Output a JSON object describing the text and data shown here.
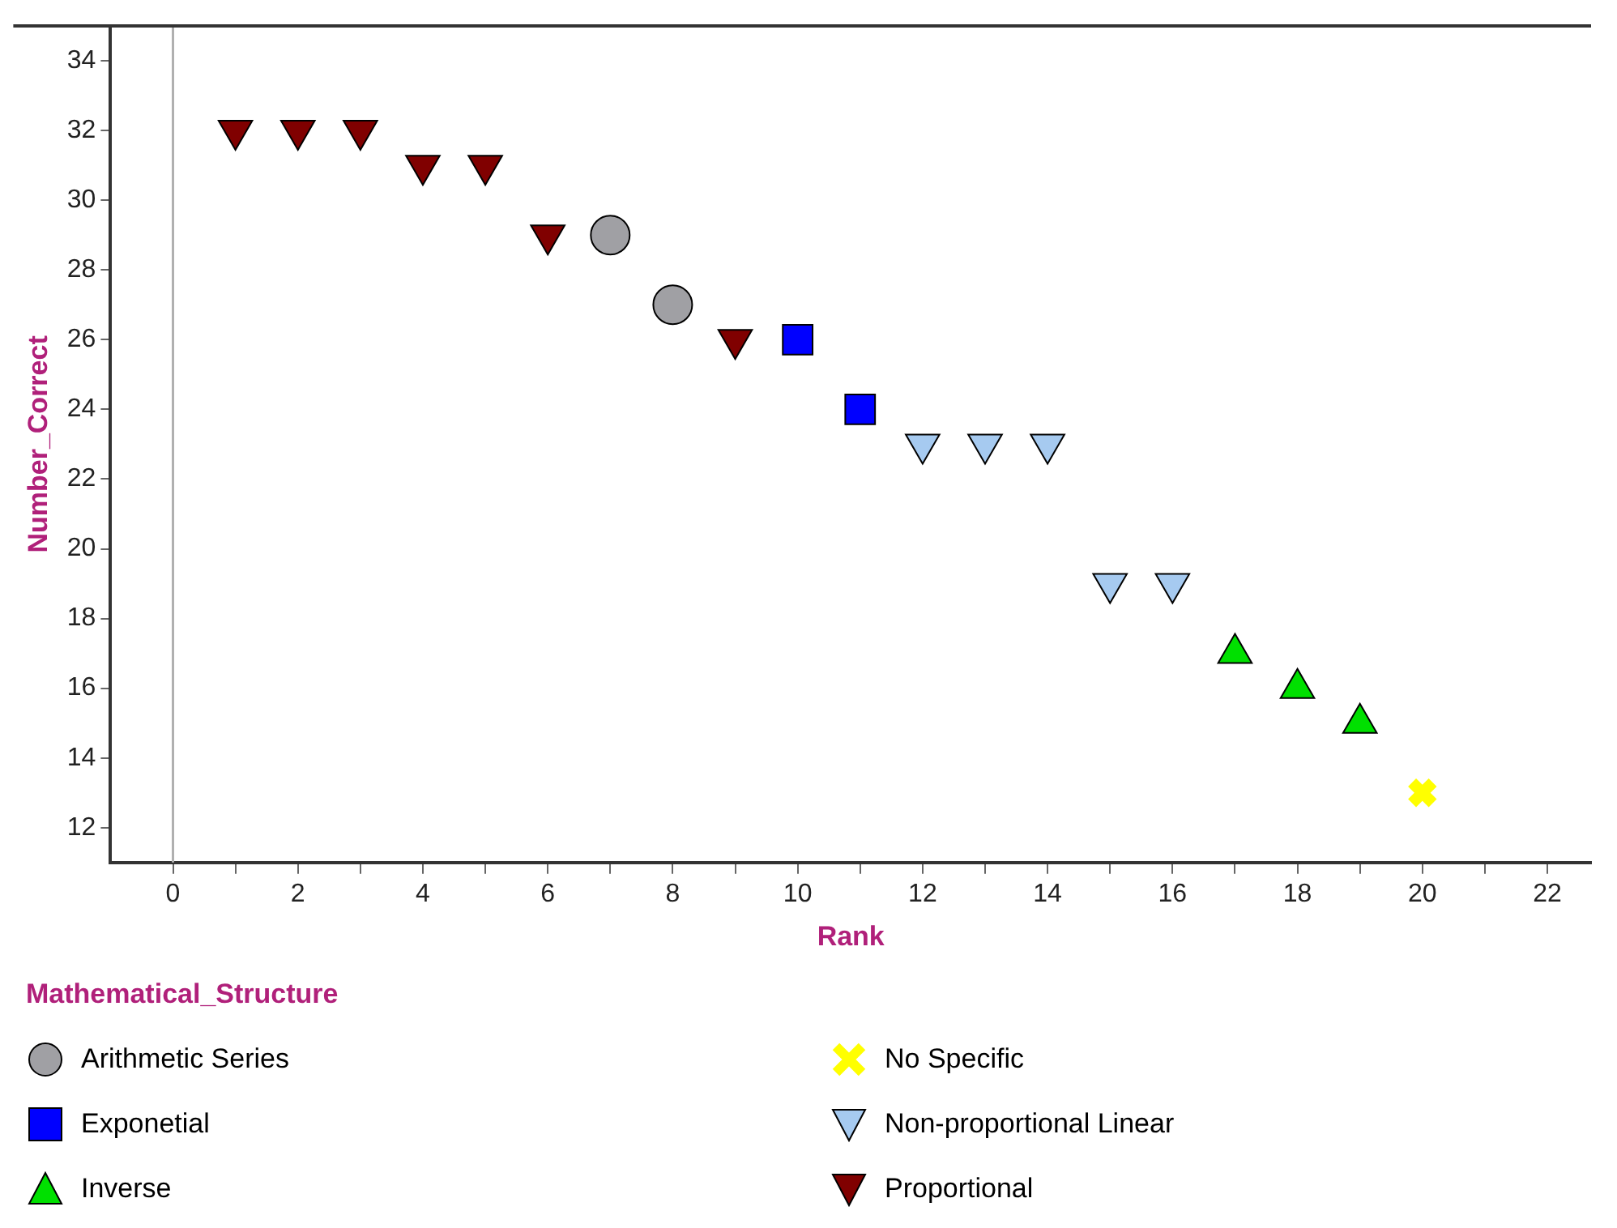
{
  "chart_data": {
    "type": "scatter",
    "xlabel": "Rank",
    "ylabel": "Number_Correct",
    "legend_title": "Mathematical_Structure",
    "legend": "bottom",
    "grid": false,
    "xlim": [
      -1,
      22.7
    ],
    "ylim": [
      11,
      35
    ],
    "xticks": [
      0,
      {
        "value": 1,
        "label": null
      },
      2,
      {
        "value": 3,
        "label": null
      },
      4,
      {
        "value": 5,
        "label": null
      },
      6,
      {
        "value": 7,
        "label": null
      },
      8,
      {
        "value": 9,
        "label": null
      },
      10,
      {
        "value": 11,
        "label": null
      },
      12,
      {
        "value": 13,
        "label": null
      },
      14,
      {
        "value": 15,
        "label": null
      },
      16,
      {
        "value": 17,
        "label": null
      },
      18,
      {
        "value": 19,
        "label": null
      },
      20,
      {
        "value": 21,
        "label": null
      },
      22
    ],
    "yticks": [
      12,
      14,
      16,
      18,
      20,
      22,
      24,
      26,
      28,
      30,
      32,
      34
    ],
    "ref_lines": [
      {
        "axis": "x",
        "value": 0,
        "color": "#b0b0b0"
      }
    ],
    "series": [
      {
        "name": "Arithmetic Series",
        "color": "#a0a0a4",
        "marker": "circle",
        "x": [
          7,
          8
        ],
        "values": [
          29,
          27
        ]
      },
      {
        "name": "Exponetial",
        "color": "#0000ff",
        "marker": "square",
        "x": [
          10,
          11
        ],
        "values": [
          26,
          24
        ]
      },
      {
        "name": "Inverse",
        "color": "#00e000",
        "marker": "triangle",
        "x": [
          17,
          18,
          19
        ],
        "values": [
          17,
          16,
          15
        ]
      },
      {
        "name": "No Specific",
        "color": "#ffff00",
        "marker": "cross",
        "x": [
          20
        ],
        "values": [
          13
        ]
      },
      {
        "name": "Non-proportional Linear",
        "color": "#a6caf0",
        "marker": "triangle_down",
        "x": [
          12,
          13,
          14,
          15,
          16
        ],
        "values": [
          23,
          23,
          23,
          19,
          19
        ]
      },
      {
        "name": "Proportional",
        "color": "#800000",
        "marker": "triangle_down",
        "x": [
          1,
          2,
          3,
          4,
          5,
          6,
          9
        ],
        "values": [
          32,
          32,
          32,
          31,
          31,
          29,
          26
        ]
      }
    ]
  }
}
